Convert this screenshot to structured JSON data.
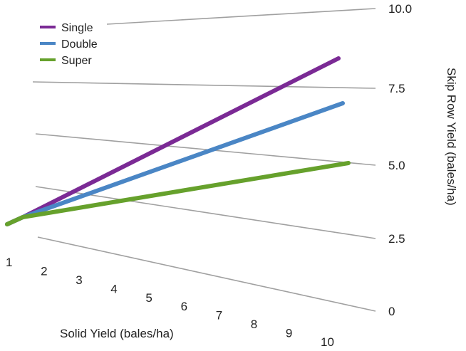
{
  "chart_data": {
    "type": "line",
    "title": "",
    "xlabel": "Solid Yield (bales/ha)",
    "ylabel": "Skip Row Yield (bales/ha)",
    "x_ticks": [
      "1",
      "2",
      "3",
      "4",
      "5",
      "6",
      "7",
      "8",
      "9",
      "10"
    ],
    "y_ticks": [
      "0",
      "2.5",
      "5.0",
      "7.5",
      "10.0"
    ],
    "xlim": [
      1,
      10
    ],
    "ylim": [
      0,
      10
    ],
    "grid": true,
    "legend_position": "top-left",
    "series": [
      {
        "name": "Single",
        "color": "#7b2a95",
        "x": [
          1,
          10
        ],
        "y": [
          1,
          8.5
        ]
      },
      {
        "name": "Double",
        "color": "#4a86c5",
        "x": [
          1,
          10
        ],
        "y": [
          1,
          7
        ]
      },
      {
        "name": "Super",
        "color": "#66a12c",
        "x": [
          1,
          10
        ],
        "y": [
          1,
          5
        ]
      }
    ]
  }
}
